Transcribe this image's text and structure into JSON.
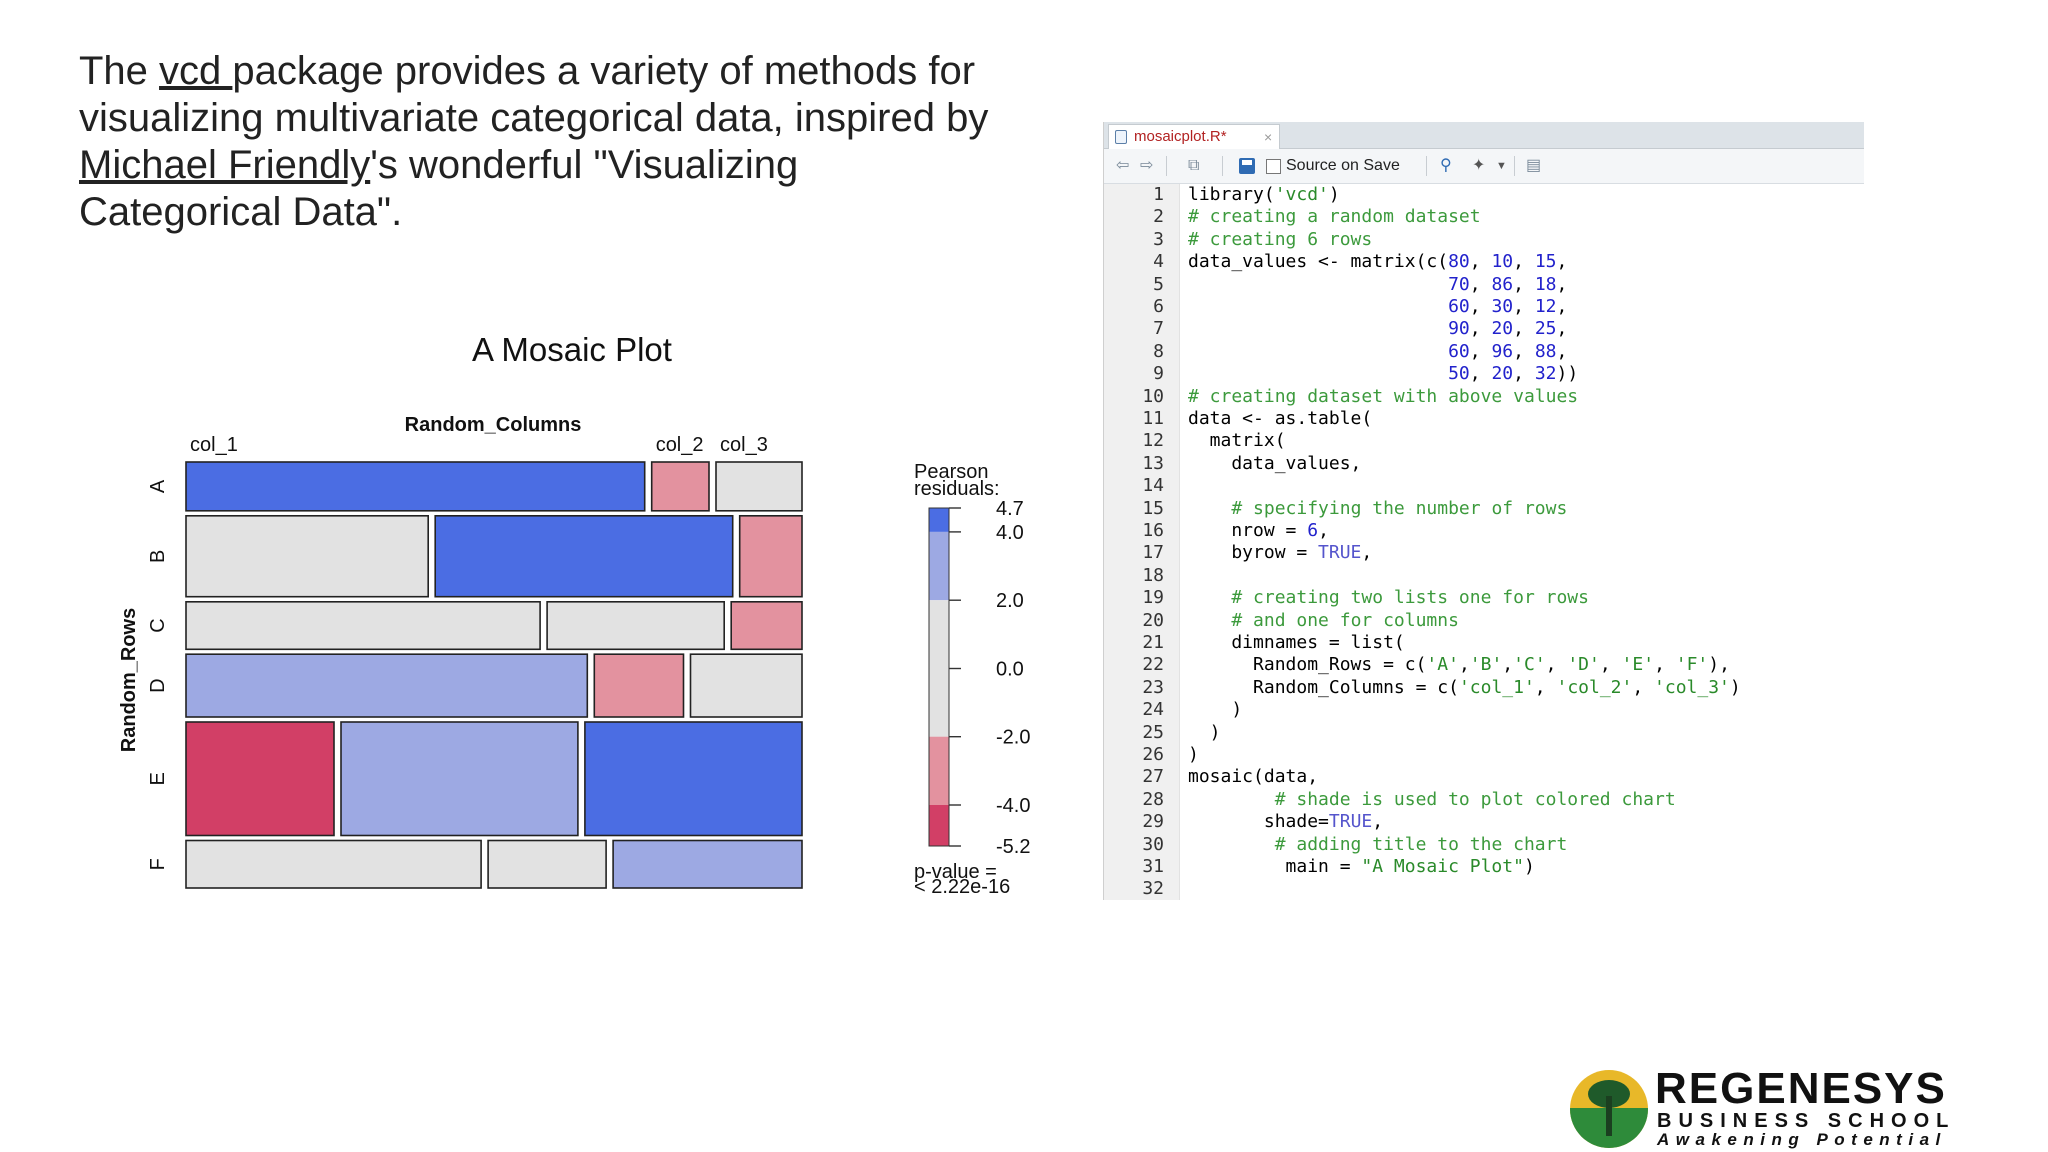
{
  "intro": {
    "part1": "The ",
    "link1": "vcd ",
    "part2": "package provides a variety of methods for visualizing multivariate categorical data, inspired by ",
    "link2": "Michael Friendly",
    "part3": "'s wonderful \"Visualizing Categorical Data\"."
  },
  "chart_data": {
    "type": "mosaic",
    "title": "A Mosaic Plot",
    "row_variable": "Random_Rows",
    "column_variable": "Random_Columns",
    "rows": [
      "A",
      "B",
      "C",
      "D",
      "E",
      "F"
    ],
    "columns": [
      "col_1",
      "col_2",
      "col_3"
    ],
    "counts": [
      [
        80,
        10,
        15
      ],
      [
        70,
        86,
        18
      ],
      [
        60,
        30,
        12
      ],
      [
        90,
        20,
        25
      ],
      [
        60,
        96,
        88
      ],
      [
        50,
        20,
        32
      ]
    ],
    "shading": [
      [
        "blue-strong",
        "red-light",
        "neutral"
      ],
      [
        "neutral",
        "blue-strong",
        "red-light"
      ],
      [
        "neutral",
        "neutral",
        "red-light"
      ],
      [
        "blue-light",
        "red-light",
        "neutral"
      ],
      [
        "red-strong",
        "blue-light",
        "blue-strong"
      ],
      [
        "neutral",
        "neutral",
        "blue-light"
      ]
    ],
    "colors": {
      "blue-strong": "#4b6de3",
      "blue-light": "#9da9e3",
      "neutral": "#e2e2e2",
      "red-light": "#e3929f",
      "red-strong": "#d23f66"
    },
    "legend": {
      "title_line1": "Pearson",
      "title_line2": "residuals:",
      "ticks": [
        "4.7",
        "4.0",
        "2.0",
        "0.0",
        "-2.0",
        "-4.0",
        "-5.2"
      ],
      "tick_values": [
        4.7,
        4.0,
        2.0,
        0.0,
        -2.0,
        -4.0,
        -5.2
      ],
      "range": [
        -5.2,
        4.7
      ],
      "pvalue_line1": "p-value =",
      "pvalue_line2": "< 2.22e-16"
    }
  },
  "editor": {
    "tab_label": "mosaicplot.R*",
    "tab_close": "×",
    "source_on_save": "Source on Save",
    "lines": [
      "library('vcd')",
      "# creating a random dataset",
      "# creating 6 rows",
      "data_values <- matrix(c(80, 10, 15,",
      "                        70, 86, 18,",
      "                        60, 30, 12,",
      "                        90, 20, 25,",
      "                        60, 96, 88,",
      "                        50, 20, 32))",
      "# creating dataset with above values",
      "data <- as.table(",
      "  matrix(",
      "    data_values,",
      "",
      "    # specifying the number of rows",
      "    nrow = 6,",
      "    byrow = TRUE,",
      "",
      "    # creating two lists one for rows",
      "    # and one for columns",
      "    dimnames = list(",
      "      Random_Rows = c('A','B','C', 'D', 'E', 'F'),",
      "      Random_Columns = c('col_1', 'col_2', 'col_3')",
      "    )",
      "  )",
      ")",
      "mosaic(data,",
      "        # shade is used to plot colored chart",
      "       shade=TRUE,",
      "        # adding title to the chart",
      "         main = \"A Mosaic Plot\")",
      ""
    ]
  },
  "logo": {
    "name": "REGENESYS",
    "sub": "BUSINESS SCHOOL",
    "tagline": "Awakening Potential"
  }
}
